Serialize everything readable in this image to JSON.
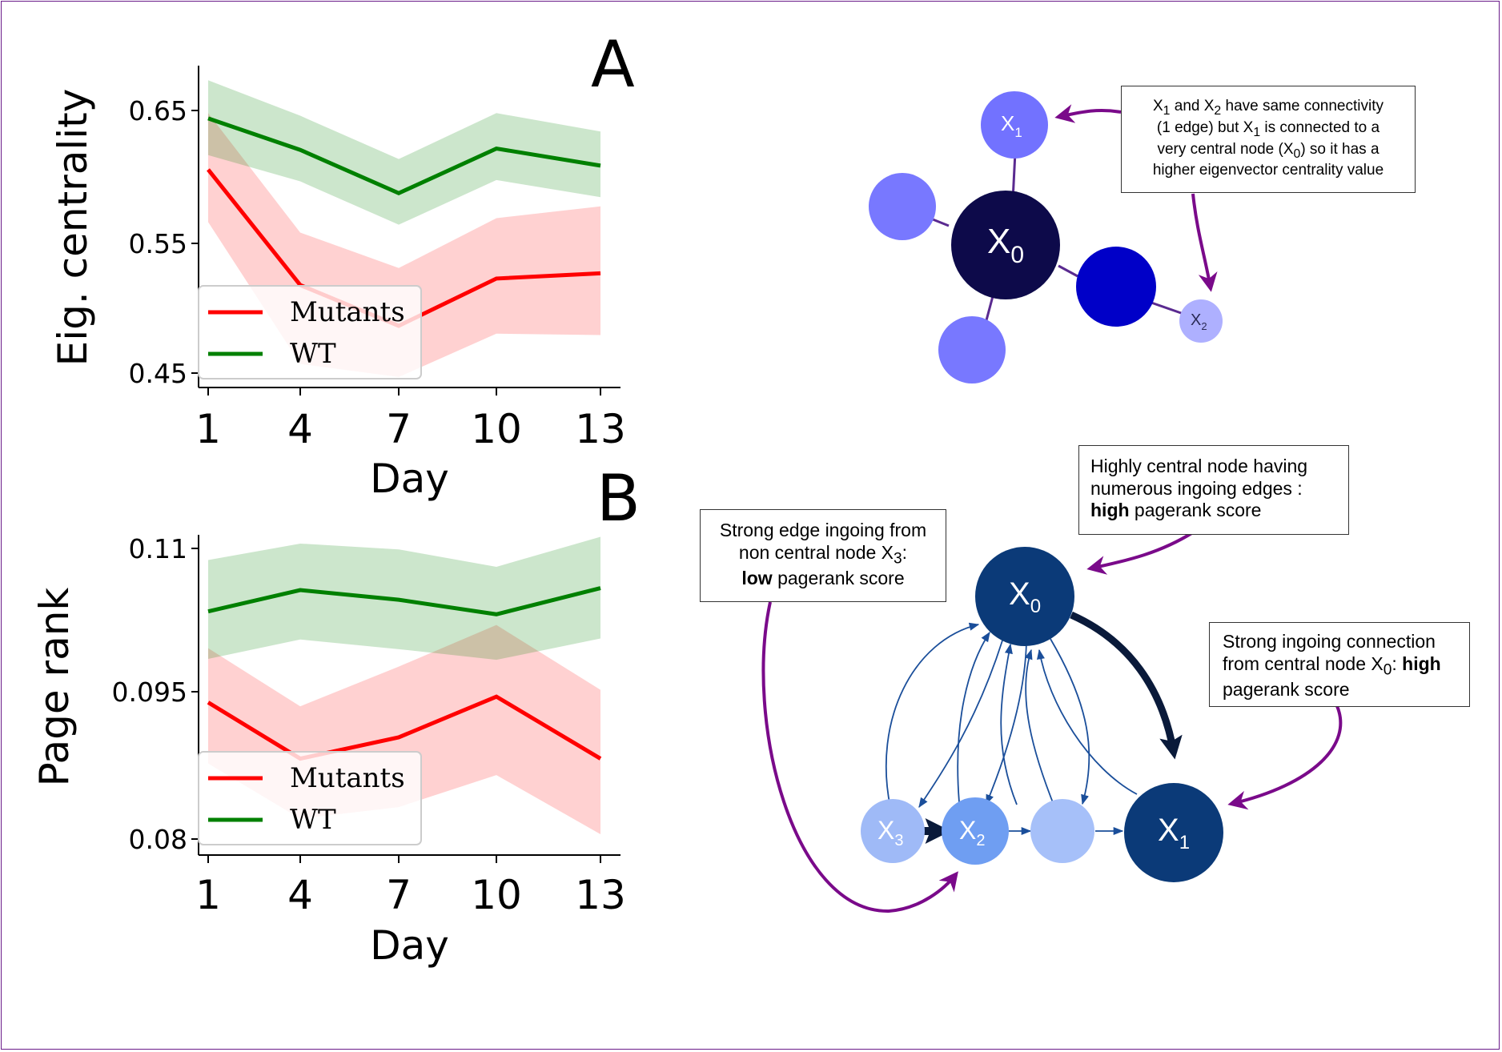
{
  "chart_data": [
    {
      "panel": "A",
      "type": "line",
      "xlabel": "Day",
      "ylabel": "Eig. centrality",
      "x": [
        1,
        4,
        7,
        10,
        13
      ],
      "xticks": [
        "1",
        "4",
        "7",
        "10",
        "13"
      ],
      "yticks": [
        "0.45",
        "0.55",
        "0.65"
      ],
      "ylim": [
        0.44,
        0.685
      ],
      "legend": "lower-left",
      "series": [
        {
          "name": "Mutants",
          "color": "#ff0000",
          "values": [
            0.605,
            0.517,
            0.486,
            0.522,
            0.526
          ],
          "lower": [
            0.565,
            0.457,
            0.447,
            0.48,
            0.479
          ],
          "upper": [
            0.648,
            0.557,
            0.53,
            0.568,
            0.577
          ]
        },
        {
          "name": "WT",
          "color": "#008000",
          "values": [
            0.644,
            0.62,
            0.587,
            0.621,
            0.608
          ],
          "lower": [
            0.616,
            0.596,
            0.563,
            0.597,
            0.584
          ],
          "upper": [
            0.673,
            0.646,
            0.613,
            0.648,
            0.634
          ]
        }
      ]
    },
    {
      "panel": "B",
      "type": "line",
      "xlabel": "Day",
      "ylabel": "Page rank",
      "x": [
        1,
        4,
        7,
        10,
        13
      ],
      "xticks": [
        "1",
        "4",
        "7",
        "10",
        "13"
      ],
      "yticks": [
        "0.08",
        "0.095",
        "0.11"
      ],
      "ylim": [
        0.0785,
        0.112
      ],
      "legend": "lower-left",
      "series": [
        {
          "name": "Mutants",
          "color": "#ff0000",
          "values": [
            0.0941,
            0.0883,
            0.0905,
            0.0947,
            0.0883
          ],
          "lower": [
            0.0878,
            0.0821,
            0.0833,
            0.0866,
            0.0805
          ],
          "upper": [
            0.0997,
            0.0937,
            0.0978,
            0.1021,
            0.0954
          ]
        },
        {
          "name": "WT",
          "color": "#008000",
          "values": [
            0.1035,
            0.1057,
            0.1047,
            0.1032,
            0.1059
          ],
          "lower": [
            0.0986,
            0.1006,
            0.0996,
            0.0985,
            0.1007
          ],
          "upper": [
            0.1088,
            0.1105,
            0.1099,
            0.1081,
            0.1112
          ]
        }
      ]
    }
  ],
  "diagram_a": {
    "nodes": {
      "x0": {
        "label": "X",
        "sub": "0",
        "color": "#0d0a4a"
      },
      "x1": {
        "label": "X",
        "sub": "1",
        "color": "#7272ff"
      },
      "x2": {
        "label": "X",
        "sub": "2",
        "color": "#aeb0ff"
      },
      "blue": {
        "color": "#0000c8"
      },
      "left": {
        "color": "#7878ff"
      },
      "bottom": {
        "color": "#7878ff"
      }
    },
    "edge_color": "#5a2a90",
    "callout": {
      "line1_a": "X",
      "line1_s1": "1",
      "line1_b": " and X",
      "line1_s2": "2",
      "line1_c": " have same connectivity",
      "line2_a": "(1 edge)  but  X",
      "line2_s": "1",
      "line2_b": " is connected to a",
      "line3_a": "very central node (X",
      "line3_s": "0",
      "line3_b": ") so it has a",
      "line4": "higher eigenvector centrality value"
    }
  },
  "diagram_b": {
    "nodes": {
      "x0": {
        "label": "X",
        "sub": "0",
        "color": "#0b3a78"
      },
      "x1": {
        "label": "X",
        "sub": "1",
        "color": "#0b3a78"
      },
      "x2": {
        "label": "X",
        "sub": "2",
        "color": "#6f9ef2"
      },
      "x3": {
        "label": "X",
        "sub": "3",
        "color": "#9fbaf7"
      },
      "mid": {
        "color": "#a6c0f9"
      }
    },
    "callout_top": {
      "line1": "Highly central node having",
      "line2": "numerous ingoing edges :",
      "bold": "high",
      "line3_rest": " pagerank score"
    },
    "callout_left": {
      "line1": "Strong edge ingoing from",
      "line2_a": "non central node X",
      "line2_s": "3",
      "line2_b": ":",
      "bold": "low",
      "line3_rest": " pagerank score"
    },
    "callout_right": {
      "line1": "Strong ingoing connection",
      "line2_a": "from central node X",
      "line2_s": "0",
      "line2_b": ": ",
      "bold": "high",
      "line3": "pagerank score"
    }
  },
  "colors": {
    "arrow_purple": "#7a0a8a",
    "thin_edge": "#1a4e9a",
    "dark_edge": "#0a1a3a"
  }
}
